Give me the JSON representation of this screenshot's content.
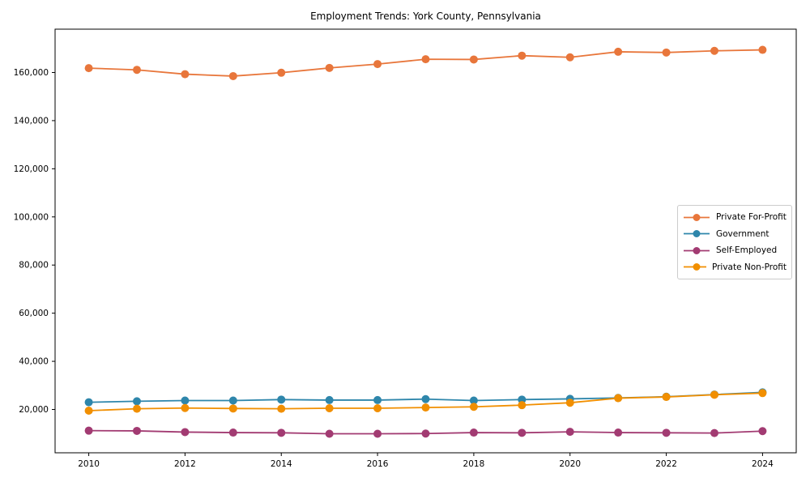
{
  "chart_data": {
    "type": "line",
    "title": "Employment Trends: York County, Pennsylvania",
    "xlabel": "",
    "ylabel": "",
    "x": [
      2010,
      2011,
      2012,
      2013,
      2014,
      2015,
      2016,
      2017,
      2018,
      2019,
      2020,
      2021,
      2022,
      2023,
      2024
    ],
    "series": [
      {
        "name": "Private For-Profit",
        "color": "#E8763B",
        "values": [
          161800,
          161100,
          159300,
          158500,
          159900,
          161900,
          163500,
          165500,
          165400,
          167000,
          166300,
          168600,
          168300,
          169000,
          169400
        ]
      },
      {
        "name": "Government",
        "color": "#2E86AB",
        "values": [
          23000,
          23400,
          23700,
          23700,
          24100,
          23900,
          23900,
          24300,
          23700,
          24100,
          24400,
          24800,
          25300,
          26200,
          27100
        ]
      },
      {
        "name": "Self-Employed",
        "color": "#A23B72",
        "values": [
          11200,
          11100,
          10600,
          10400,
          10300,
          9900,
          9900,
          10000,
          10400,
          10300,
          10700,
          10400,
          10300,
          10200,
          11000
        ]
      },
      {
        "name": "Private Non-Profit",
        "color": "#F18F01",
        "values": [
          19500,
          20300,
          20600,
          20400,
          20300,
          20500,
          20500,
          20800,
          21100,
          21800,
          22800,
          24700,
          25200,
          26100,
          26800
        ]
      }
    ],
    "xlim": [
      2009.3,
      2024.7
    ],
    "ylim": [
      2000,
      178000
    ],
    "xticks": [
      2010,
      2012,
      2014,
      2016,
      2018,
      2020,
      2022,
      2024
    ],
    "yticks": [
      20000,
      40000,
      60000,
      80000,
      100000,
      120000,
      140000,
      160000
    ],
    "ytick_labels": [
      "20,000",
      "40,000",
      "60,000",
      "80,000",
      "100,000",
      "120,000",
      "140,000",
      "160,000"
    ],
    "legend_position": "center right",
    "grid": false,
    "axis_color": "#000000",
    "tick_label_color": "#000000"
  }
}
